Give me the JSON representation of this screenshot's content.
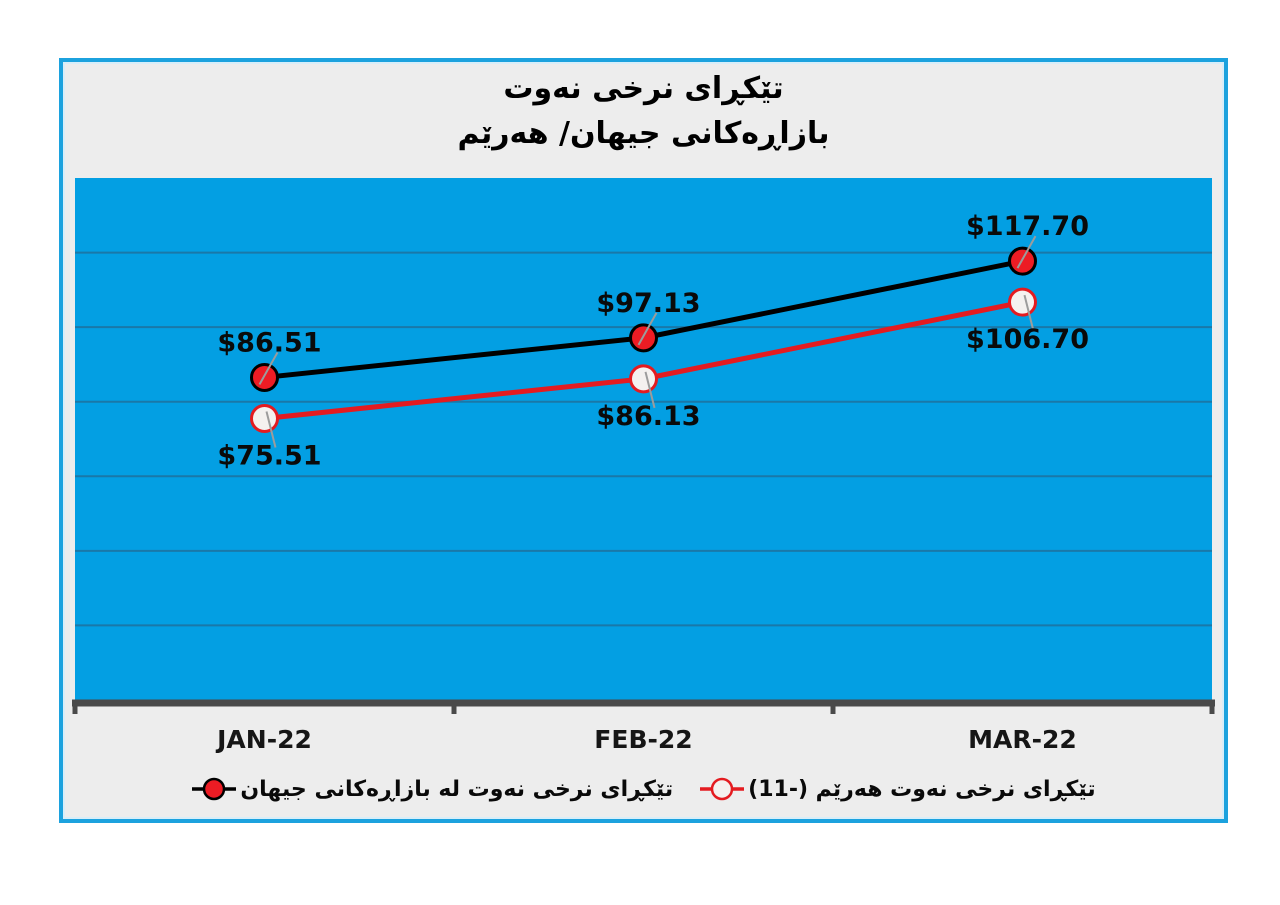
{
  "page": {
    "background": "#FFFFFF"
  },
  "frame": {
    "background": "#EDEDED",
    "border_color": "#1CA2DE"
  },
  "chart_data": {
    "type": "line",
    "title": "تێکڕای نرخی نەوت بازاڕەکانی جیهان/ هەرێم",
    "title_lines": [
      "تێکڕای نرخی نەوت",
      "بازاڕەکانی جیهان/ هەرێم"
    ],
    "categories": [
      "JAN-22",
      "FEB-22",
      "MAR-22"
    ],
    "series": [
      {
        "name": "تێکڕای نرخی نەوت له بازاڕەکانی جیهان",
        "values": [
          86.51,
          97.13,
          117.7
        ],
        "data_labels": [
          "$86.51",
          "$97.13",
          "$117.70"
        ],
        "label_side": "above",
        "line_color": "#000000",
        "marker_fill": "#ED1C24",
        "marker_stroke": "#000000"
      },
      {
        "name": "تێکڕای نرخی نەوت هەرێم (-11)",
        "values": [
          75.51,
          86.13,
          106.7
        ],
        "data_labels": [
          "$75.51",
          "$86.13",
          "$106.70"
        ],
        "label_side": "below",
        "line_color": "#E41B20",
        "marker_fill": "#F4F1EF",
        "marker_stroke": "#E41B20"
      }
    ],
    "ylim": [
      0,
      140
    ],
    "grid_step": 20,
    "grid": true,
    "legend_position": "bottom",
    "xlabel": "",
    "ylabel": "",
    "plot_bg": "#039FE3",
    "grid_color": "#1A78A8",
    "axis_color": "#4A4A4A",
    "leader_color": "#9C9C9C"
  }
}
